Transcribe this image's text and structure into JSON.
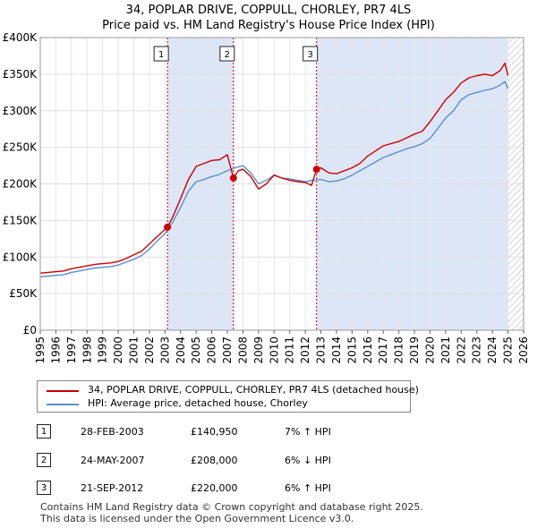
{
  "title_line1": "34, POPLAR DRIVE, COPPULL, CHORLEY, PR7 4LS",
  "title_line2": "Price paid vs. HM Land Registry's House Price Index (HPI)",
  "colors": {
    "property": "#cc0000",
    "hpi": "#5b8fd0",
    "shade": "#dde6f7",
    "hatch": "#c8c8c8",
    "marker_line": "#cc0000"
  },
  "chart_data": {
    "type": "line",
    "title": "Price paid vs. HM Land Registry's House Price Index (HPI)",
    "xlabel": "",
    "ylabel": "",
    "xlim": [
      1995,
      2026
    ],
    "ylim": [
      0,
      400000
    ],
    "x_ticks": [
      "1995",
      "1996",
      "1997",
      "1998",
      "1999",
      "2000",
      "2001",
      "2002",
      "2003",
      "2004",
      "2005",
      "2006",
      "2007",
      "2008",
      "2009",
      "2010",
      "2011",
      "2012",
      "2013",
      "2014",
      "2015",
      "2016",
      "2017",
      "2018",
      "2019",
      "2020",
      "2021",
      "2022",
      "2023",
      "2024",
      "2025",
      "2026"
    ],
    "y_ticks": [
      {
        "value": 0,
        "label": "£0"
      },
      {
        "value": 50000,
        "label": "£50K"
      },
      {
        "value": 100000,
        "label": "£100K"
      },
      {
        "value": 150000,
        "label": "£150K"
      },
      {
        "value": 200000,
        "label": "£200K"
      },
      {
        "value": 250000,
        "label": "£250K"
      },
      {
        "value": 300000,
        "label": "£300K"
      },
      {
        "value": 350000,
        "label": "£350K"
      },
      {
        "value": 400000,
        "label": "£400K"
      }
    ],
    "shaded_spans": [
      [
        2003.16,
        2007.39
      ],
      [
        2012.72,
        2025.0
      ]
    ],
    "future_hatch_from": 2025.0,
    "series": [
      {
        "name": "34, POPLAR DRIVE, COPPULL, CHORLEY, PR7 4LS (detached house)",
        "color": "#cc0000",
        "x": [
          1995.0,
          1995.5,
          1996.0,
          1996.5,
          1997.0,
          1997.5,
          1998.0,
          1998.5,
          1999.0,
          1999.5,
          2000.0,
          2000.5,
          2001.0,
          2001.5,
          2002.0,
          2002.5,
          2003.0,
          2003.16,
          2003.5,
          2004.0,
          2004.5,
          2005.0,
          2005.5,
          2006.0,
          2006.5,
          2007.0,
          2007.39,
          2007.7,
          2008.0,
          2008.5,
          2009.0,
          2009.5,
          2010.0,
          2010.5,
          2011.0,
          2011.5,
          2012.0,
          2012.4,
          2012.72,
          2013.0,
          2013.5,
          2014.0,
          2014.5,
          2015.0,
          2015.5,
          2016.0,
          2016.5,
          2017.0,
          2017.5,
          2018.0,
          2018.5,
          2019.0,
          2019.5,
          2020.0,
          2020.5,
          2021.0,
          2021.5,
          2022.0,
          2022.5,
          2023.0,
          2023.5,
          2024.0,
          2024.5,
          2024.8,
          2025.0
        ],
        "values": [
          78000,
          79000,
          80000,
          81000,
          84000,
          86000,
          88000,
          90000,
          91000,
          92000,
          94000,
          98000,
          103000,
          108000,
          118000,
          128000,
          138000,
          140950,
          155000,
          180000,
          206000,
          224000,
          228000,
          232000,
          233000,
          240000,
          208000,
          218000,
          220000,
          210000,
          193000,
          200000,
          212000,
          208000,
          205000,
          203000,
          202000,
          198000,
          220000,
          222000,
          215000,
          214000,
          218000,
          222000,
          228000,
          238000,
          245000,
          252000,
          255000,
          258000,
          263000,
          268000,
          272000,
          285000,
          300000,
          315000,
          325000,
          338000,
          345000,
          348000,
          350000,
          348000,
          355000,
          365000,
          348000
        ]
      },
      {
        "name": "HPI: Average price, detached house, Chorley",
        "color": "#5b8fd0",
        "x": [
          1995.0,
          1995.5,
          1996.0,
          1996.5,
          1997.0,
          1997.5,
          1998.0,
          1998.5,
          1999.0,
          1999.5,
          2000.0,
          2000.5,
          2001.0,
          2001.5,
          2002.0,
          2002.5,
          2003.0,
          2003.5,
          2004.0,
          2004.5,
          2005.0,
          2005.5,
          2006.0,
          2006.5,
          2007.0,
          2007.5,
          2008.0,
          2008.5,
          2009.0,
          2009.5,
          2010.0,
          2010.5,
          2011.0,
          2011.5,
          2012.0,
          2012.5,
          2013.0,
          2013.5,
          2014.0,
          2014.5,
          2015.0,
          2015.5,
          2016.0,
          2016.5,
          2017.0,
          2017.5,
          2018.0,
          2018.5,
          2019.0,
          2019.5,
          2020.0,
          2020.5,
          2021.0,
          2021.5,
          2022.0,
          2022.5,
          2023.0,
          2023.5,
          2024.0,
          2024.5,
          2024.8,
          2025.0
        ],
        "values": [
          73000,
          74000,
          75000,
          76000,
          79000,
          81000,
          83000,
          85000,
          86000,
          87000,
          89000,
          93000,
          97000,
          102000,
          111000,
          122000,
          132000,
          148000,
          168000,
          190000,
          203000,
          206000,
          210000,
          213000,
          218000,
          222000,
          225000,
          215000,
          200000,
          205000,
          212000,
          208000,
          207000,
          205000,
          203000,
          205000,
          206000,
          203000,
          204000,
          207000,
          212000,
          218000,
          224000,
          230000,
          236000,
          240000,
          244000,
          248000,
          251000,
          255000,
          262000,
          276000,
          290000,
          300000,
          315000,
          322000,
          325000,
          328000,
          330000,
          335000,
          340000,
          330000
        ]
      }
    ],
    "markers": [
      {
        "label": "1",
        "x": 2003.16,
        "value": 140950
      },
      {
        "label": "2",
        "x": 2007.39,
        "value": 208000
      },
      {
        "label": "3",
        "x": 2012.72,
        "value": 220000
      }
    ]
  },
  "legend": {
    "property_label": "34, POPLAR DRIVE, COPPULL, CHORLEY, PR7 4LS (detached house)",
    "hpi_label": "HPI: Average price, detached house, Chorley"
  },
  "sales": [
    {
      "num": "1",
      "date": "28-FEB-2003",
      "price": "£140,950",
      "hpi": "7% ↑ HPI"
    },
    {
      "num": "2",
      "date": "24-MAY-2007",
      "price": "£208,000",
      "hpi": "6% ↓ HPI"
    },
    {
      "num": "3",
      "date": "21-SEP-2012",
      "price": "£220,000",
      "hpi": "6% ↑ HPI"
    }
  ],
  "footer": {
    "line1": "Contains HM Land Registry data © Crown copyright and database right 2025.",
    "line2": "This data is licensed under the Open Government Licence v3.0."
  }
}
